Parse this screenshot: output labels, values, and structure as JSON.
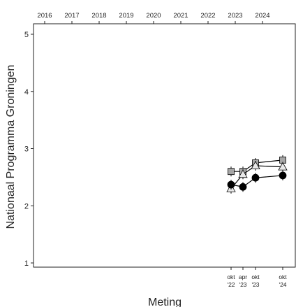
{
  "chart_data": {
    "type": "line",
    "title": "",
    "xlabel": "Meting",
    "ylabel": "Nationaal Programma Groningen",
    "ylim": [
      1,
      5
    ],
    "y_ticks": [
      "1",
      "2",
      "3",
      "4",
      "5"
    ],
    "top_axis": {
      "ticks": [
        "2016",
        "2017",
        "2018",
        "2019",
        "2020",
        "2021",
        "2022",
        "2023",
        "2024"
      ]
    },
    "x_categories": [
      {
        "line1": "okt",
        "line2": "'22"
      },
      {
        "line1": "apr",
        "line2": "'23"
      },
      {
        "line1": "okt",
        "line2": "'23"
      },
      {
        "line1": "okt",
        "line2": "'24"
      }
    ],
    "series": [
      {
        "marker": "square",
        "color": "#a6a6a6",
        "values": [
          2.6,
          2.6,
          2.75,
          2.8
        ]
      },
      {
        "marker": "triangle",
        "color": "#e8e8e8",
        "values": [
          2.3,
          2.55,
          2.7,
          2.68
        ]
      },
      {
        "marker": "circle",
        "color": "#000000",
        "values": [
          2.37,
          2.33,
          2.49,
          2.53
        ]
      }
    ],
    "grid": false,
    "legend": "none"
  }
}
